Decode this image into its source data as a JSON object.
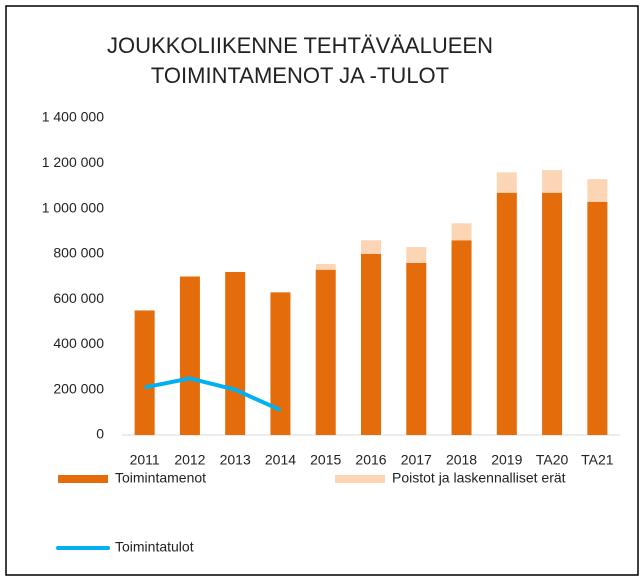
{
  "chart_data": {
    "type": "bar",
    "stacked": true,
    "title": [
      "JOUKKOLIIKENNE TEHTÄVÄALUEEN",
      "TOIMINTAMENOT  JA -TULOT"
    ],
    "categories": [
      "2011",
      "2012",
      "2013",
      "2014",
      "2015",
      "2016",
      "2017",
      "2018",
      "2019",
      "TA20",
      "TA21"
    ],
    "series": [
      {
        "name": "Toimintamenot",
        "color": "#e46c0a",
        "type": "bar",
        "values": [
          550000,
          700000,
          720000,
          630000,
          730000,
          800000,
          760000,
          860000,
          1070000,
          1070000,
          1030000
        ]
      },
      {
        "name": "Poistot ja laskennalliset erät",
        "color": "#fcd5b5",
        "type": "bar",
        "values": [
          null,
          null,
          null,
          null,
          25000,
          60000,
          70000,
          75000,
          90000,
          100000,
          100000
        ]
      },
      {
        "name": "Toimintatulot",
        "color": "#00b0f0",
        "type": "line",
        "values": [
          210000,
          250000,
          200000,
          110000,
          null,
          null,
          null,
          null,
          null,
          null,
          null
        ]
      }
    ],
    "ylim": [
      0,
      1400000
    ],
    "yticks": [
      0,
      {
        "value": 200000,
        "label": "200 000"
      },
      {
        "value": 400000,
        "label": "400 000"
      },
      {
        "value": 600000,
        "label": "600 000"
      },
      {
        "value": 800000,
        "label": "800 000"
      },
      {
        "value": 1000000,
        "label": "1 000 000"
      },
      {
        "value": 1200000,
        "label": "1 200 000"
      },
      {
        "value": 1400000,
        "label": "1 400 000"
      }
    ],
    "grid": false
  }
}
